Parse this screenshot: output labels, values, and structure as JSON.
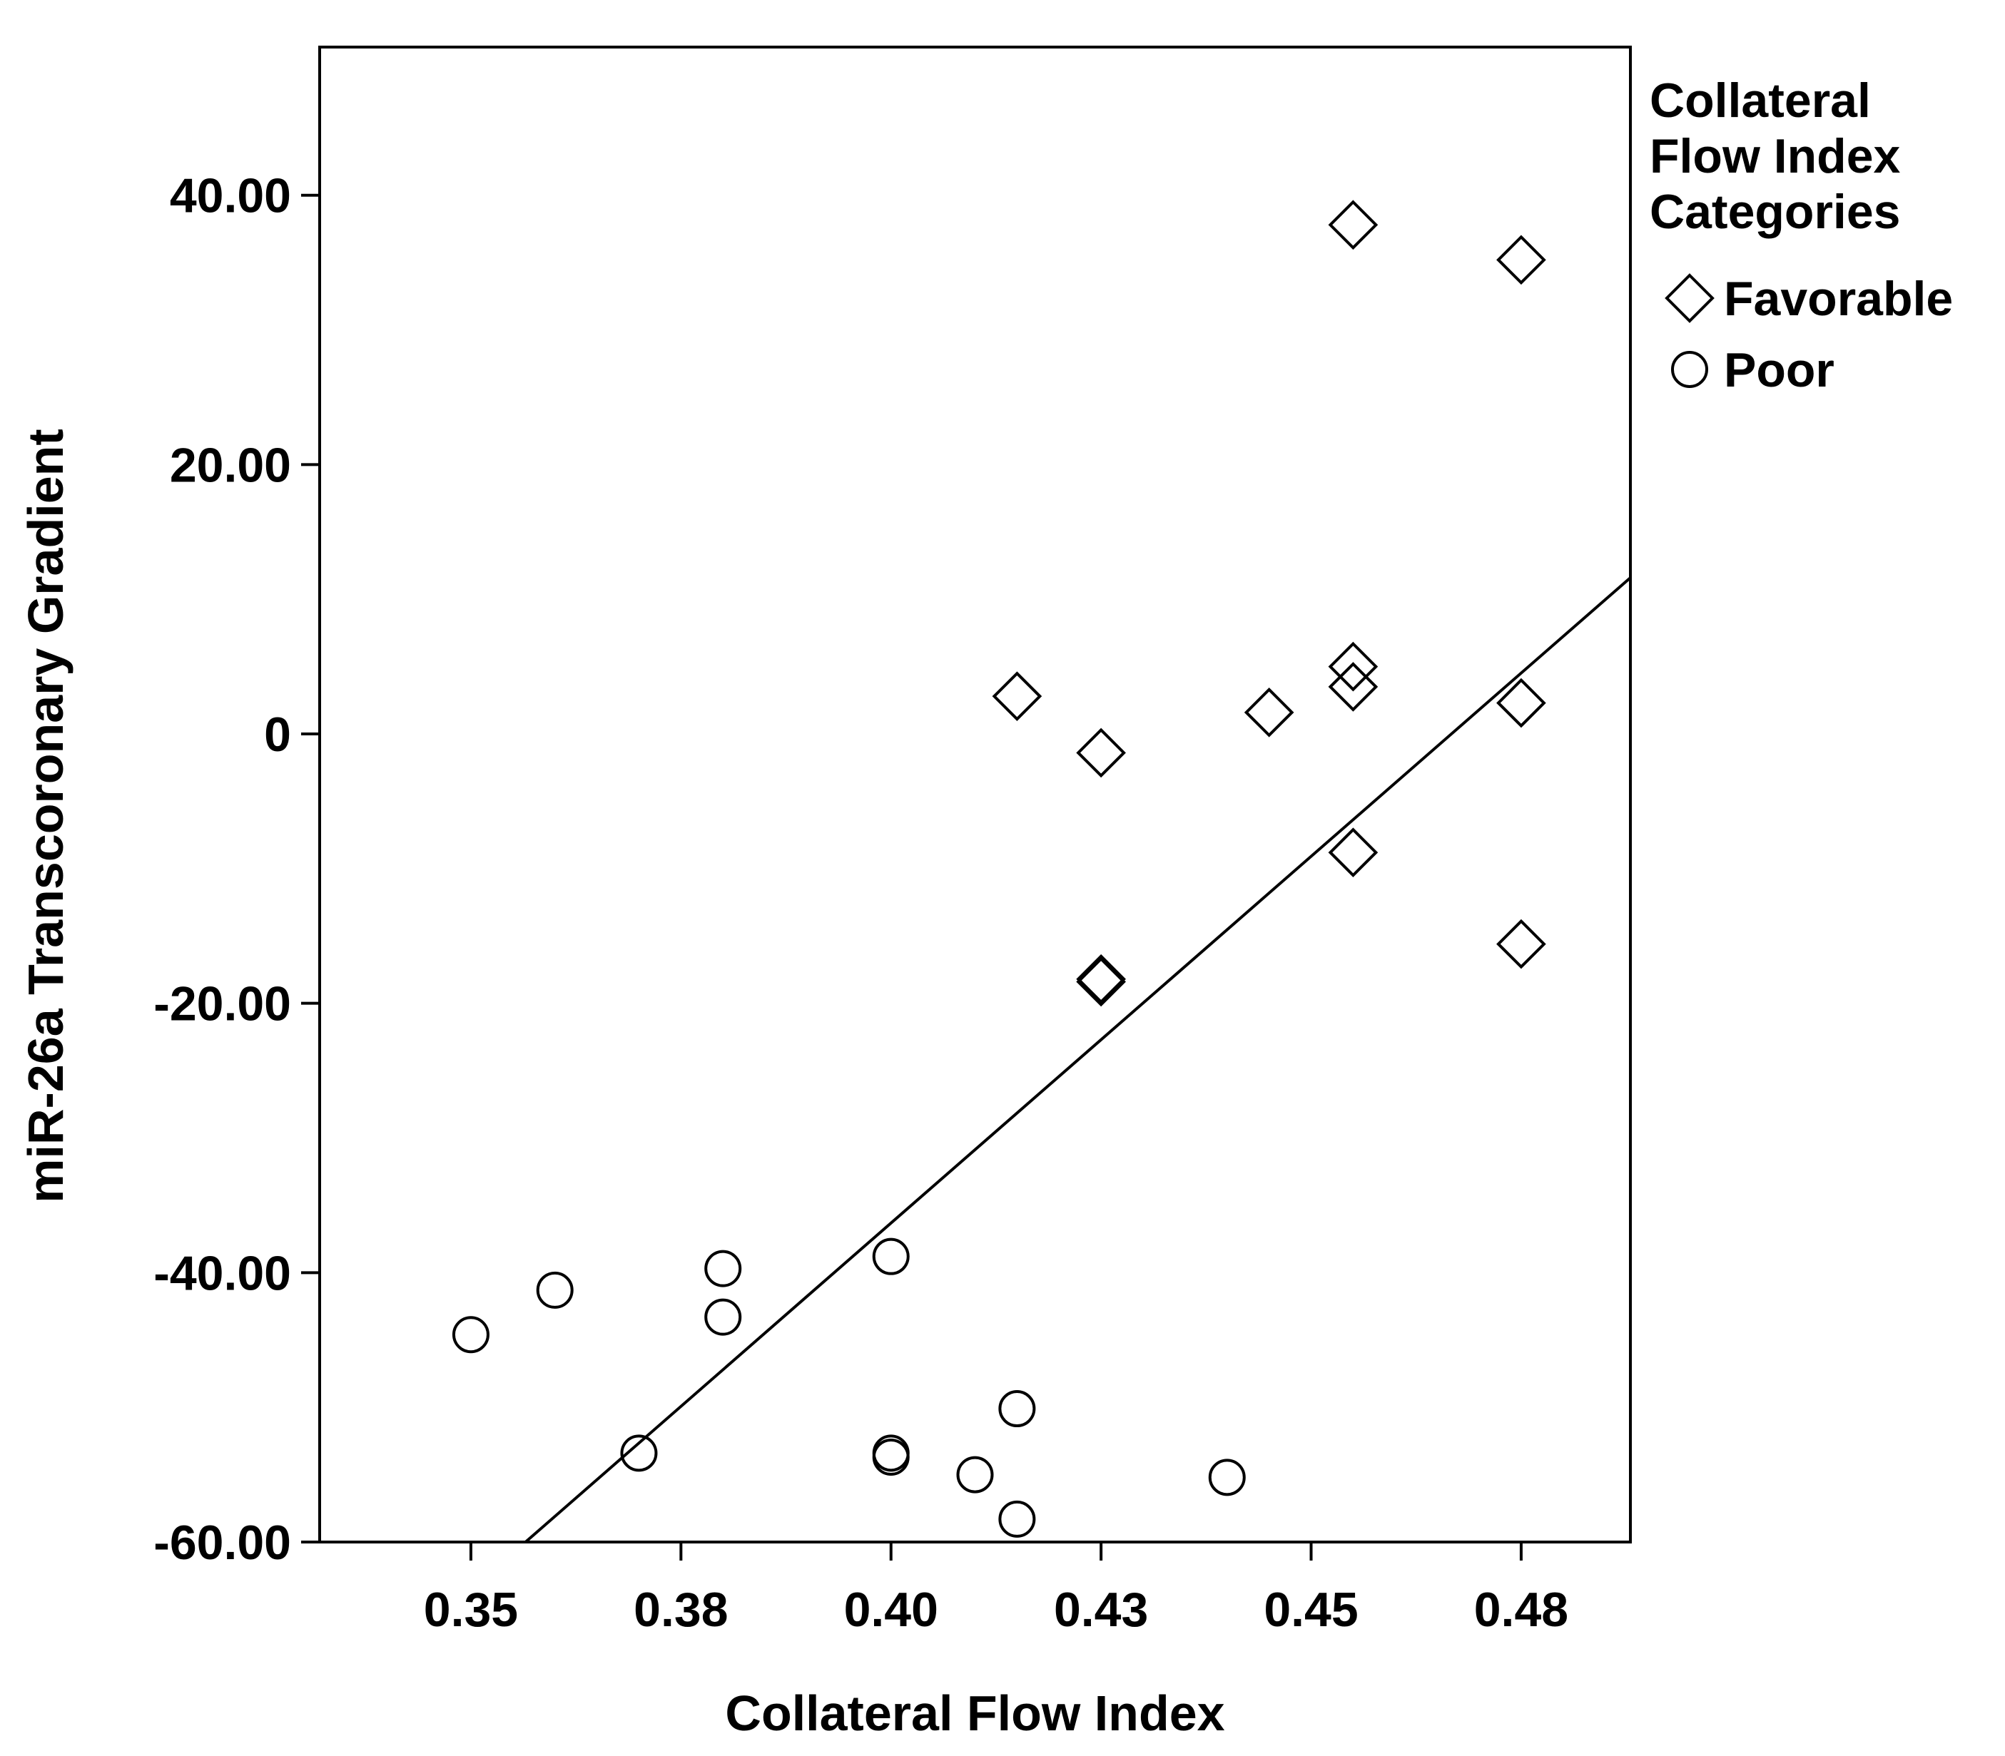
{
  "chart_data": {
    "type": "scatter",
    "xlabel": "Collateral Flow Index",
    "ylabel": "miR-26a Transcoronary Gradient",
    "xlim": [
      0.332,
      0.488
    ],
    "ylim": [
      -60,
      51
    ],
    "x_ticks": [
      {
        "value": 0.35,
        "label": "0.35"
      },
      {
        "value": 0.375,
        "label": "0.38"
      },
      {
        "value": 0.4,
        "label": "0.40"
      },
      {
        "value": 0.425,
        "label": "0.43"
      },
      {
        "value": 0.45,
        "label": "0.45"
      },
      {
        "value": 0.475,
        "label": "0.48"
      }
    ],
    "y_ticks": [
      {
        "value": 40,
        "label": "40.00"
      },
      {
        "value": 20,
        "label": "20.00"
      },
      {
        "value": 0,
        "label": "0"
      },
      {
        "value": -20,
        "label": "-20.00"
      },
      {
        "value": -40,
        "label": "-40.00"
      },
      {
        "value": -60,
        "label": "-60.00"
      }
    ],
    "legend": {
      "title_lines": [
        "Collateral",
        "Flow Index",
        "Categories"
      ],
      "position": "right"
    },
    "series": [
      {
        "name": "Favorable",
        "marker": "diamond",
        "points": [
          {
            "x": 0.455,
            "y": 37.8
          },
          {
            "x": 0.475,
            "y": 35.2
          },
          {
            "x": 0.415,
            "y": 2.8
          },
          {
            "x": 0.425,
            "y": -1.4
          },
          {
            "x": 0.445,
            "y": 1.6
          },
          {
            "x": 0.455,
            "y": 5.0
          },
          {
            "x": 0.455,
            "y": 3.5
          },
          {
            "x": 0.475,
            "y": 2.3
          },
          {
            "x": 0.455,
            "y": -8.8
          },
          {
            "x": 0.475,
            "y": -15.6
          },
          {
            "x": 0.425,
            "y": -18.2
          },
          {
            "x": 0.425,
            "y": -18.4
          }
        ]
      },
      {
        "name": "Poor",
        "marker": "circle",
        "points": [
          {
            "x": 0.35,
            "y": -44.6
          },
          {
            "x": 0.36,
            "y": -41.3
          },
          {
            "x": 0.37,
            "y": -53.4
          },
          {
            "x": 0.38,
            "y": -39.7
          },
          {
            "x": 0.38,
            "y": -43.3
          },
          {
            "x": 0.4,
            "y": -38.8
          },
          {
            "x": 0.4,
            "y": -53.4
          },
          {
            "x": 0.4,
            "y": -53.7
          },
          {
            "x": 0.41,
            "y": -55.0
          },
          {
            "x": 0.415,
            "y": -50.1
          },
          {
            "x": 0.415,
            "y": -58.3
          },
          {
            "x": 0.44,
            "y": -55.2
          }
        ]
      }
    ],
    "fit_line": {
      "x": [
        0.3565,
        0.488
      ],
      "y": [
        -60,
        11.6
      ]
    },
    "grid": false
  }
}
